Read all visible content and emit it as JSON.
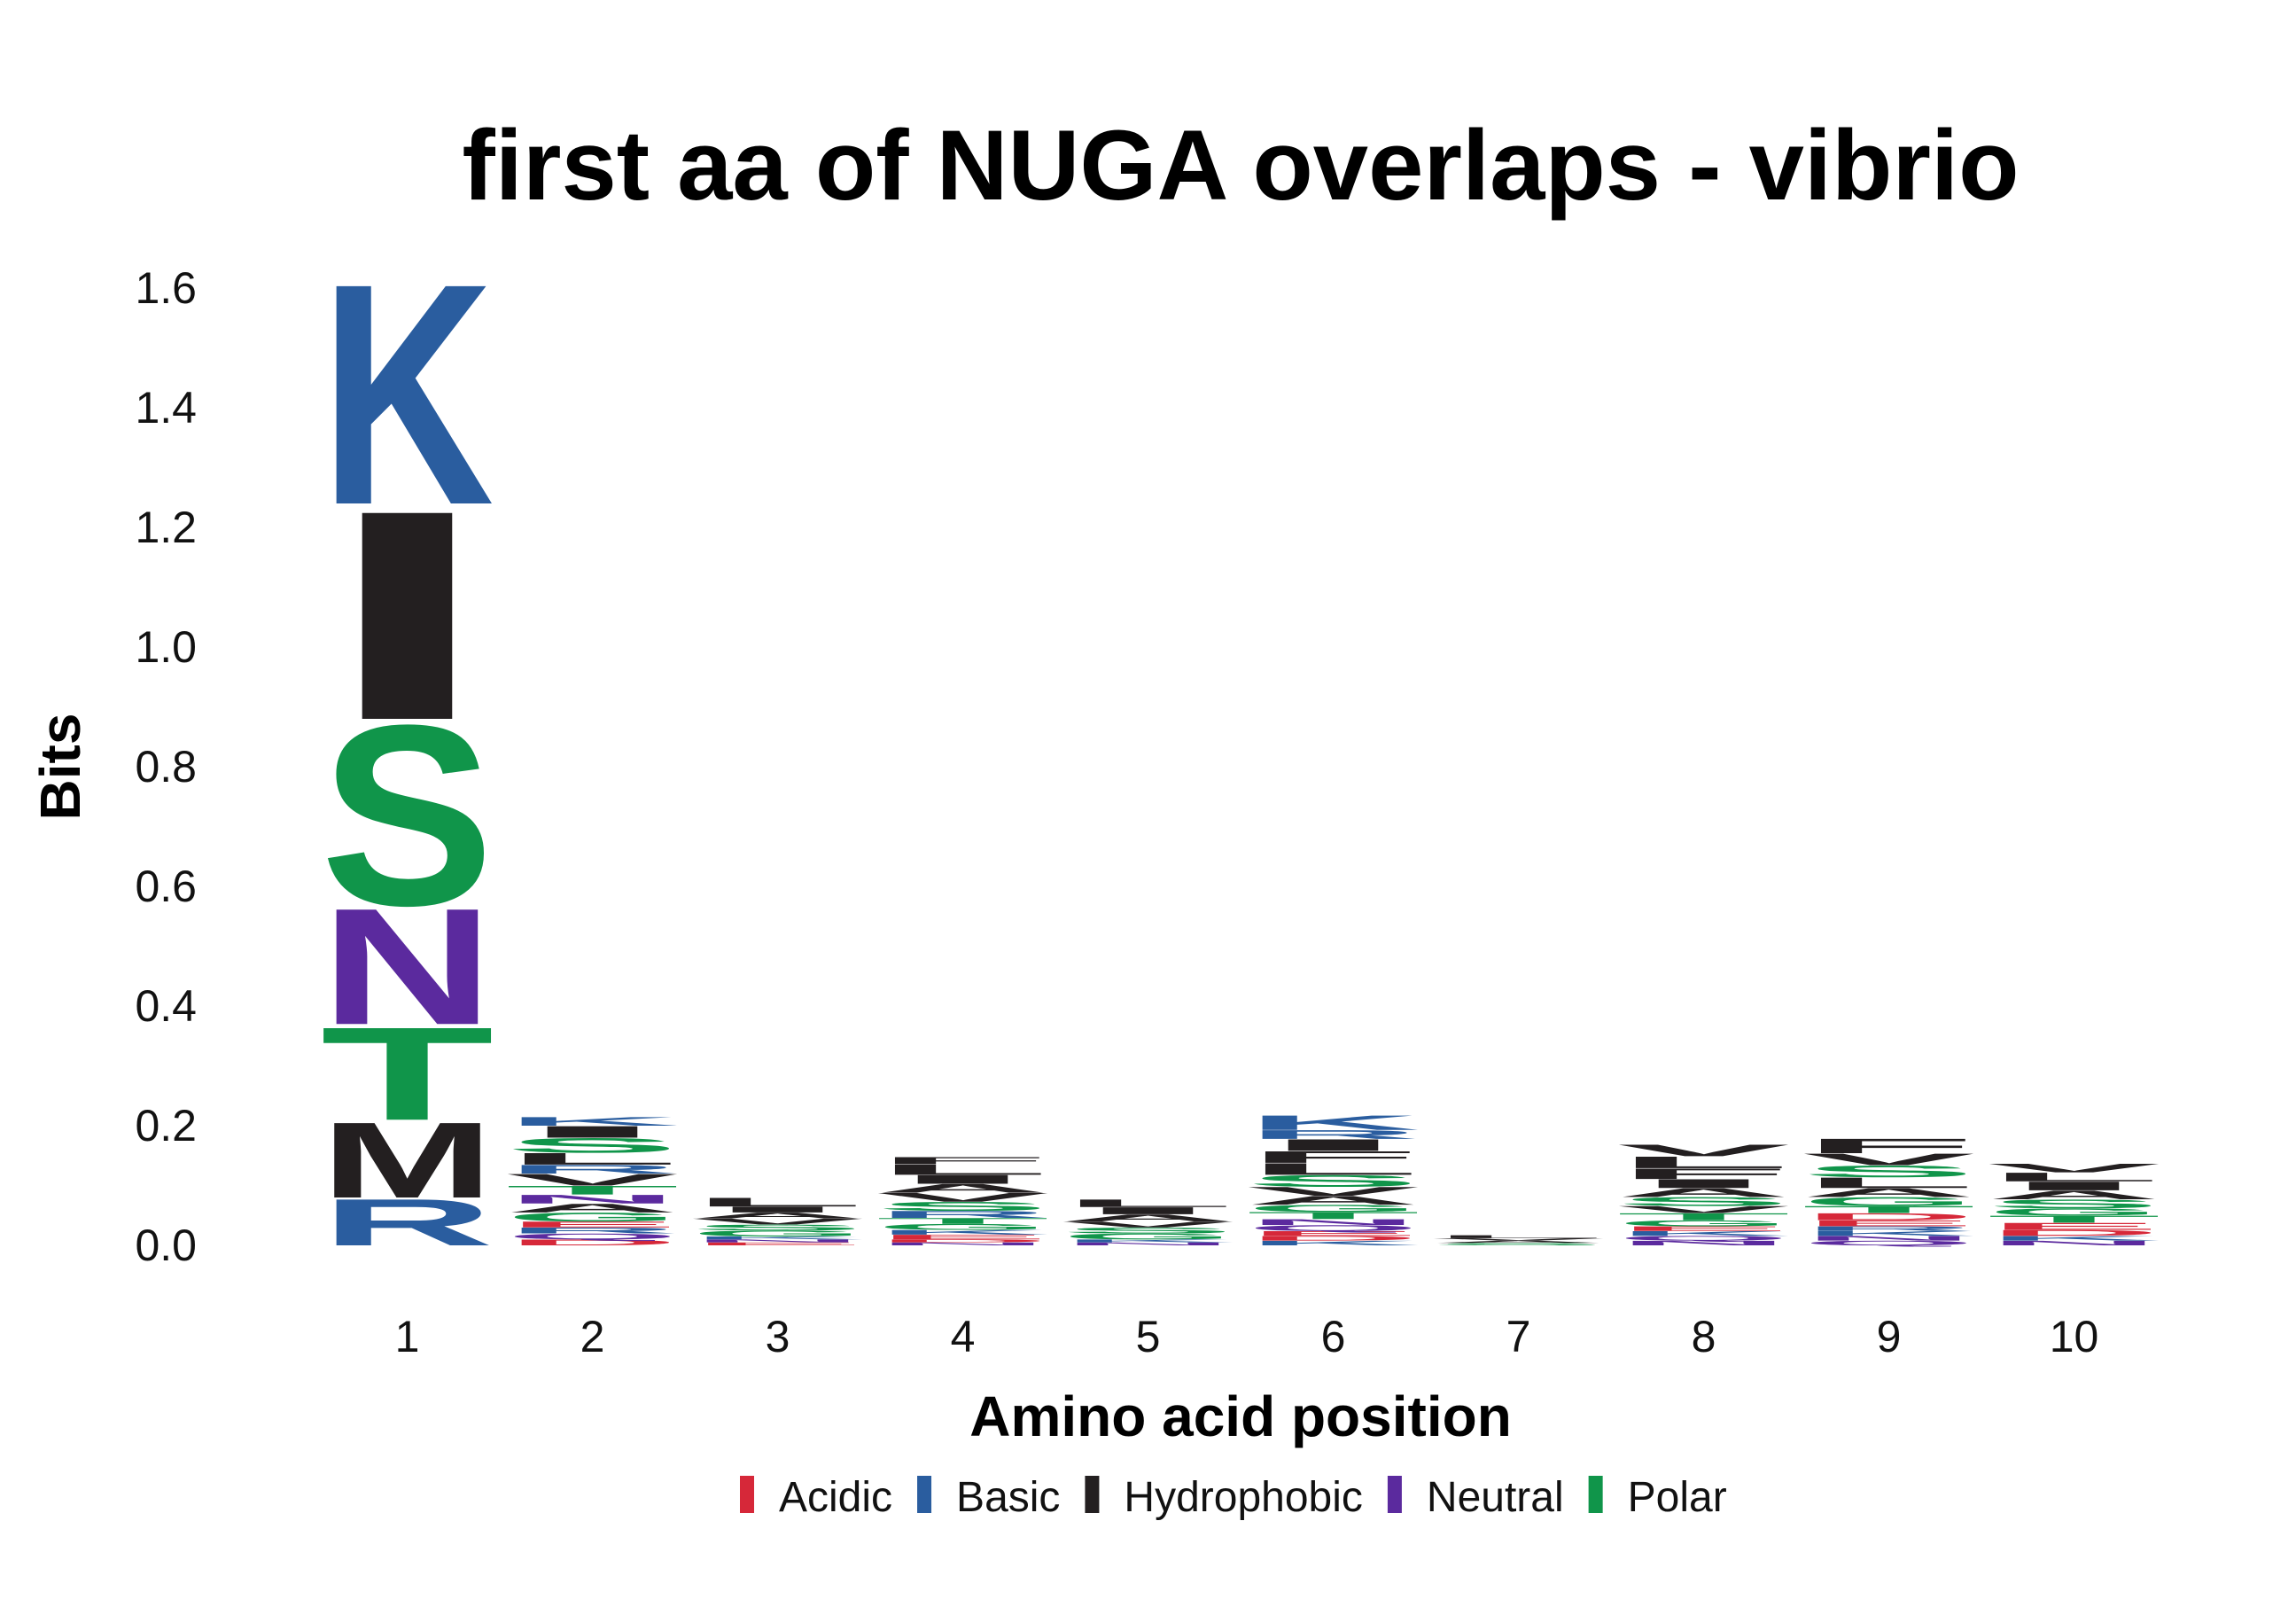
{
  "chart_data": {
    "type": "sequence-logo",
    "title": "first aa of NUGA overlaps - vibrio",
    "xlabel": "Amino acid position",
    "ylabel": "Bits",
    "ylim": [
      0,
      1.6
    ],
    "yticks": [
      "0.0",
      "0.2",
      "0.4",
      "0.6",
      "0.8",
      "1.0",
      "1.2",
      "1.4",
      "1.6"
    ],
    "xticks": [
      "1",
      "2",
      "3",
      "4",
      "5",
      "6",
      "7",
      "8",
      "9",
      "10"
    ],
    "grid": false,
    "legend_position": "bottom",
    "legend": [
      {
        "name": "Acidic",
        "color": "#d62839"
      },
      {
        "name": "Basic",
        "color": "#2a5d9f"
      },
      {
        "name": "Hydrophobic",
        "color": "#231f20"
      },
      {
        "name": "Neutral",
        "color": "#5b2a9e"
      },
      {
        "name": "Polar",
        "color": "#10954a"
      }
    ],
    "positions": [
      {
        "position": "1",
        "letters": [
          {
            "aa": "R",
            "group": "Basic",
            "bits": 0.08
          },
          {
            "aa": "M",
            "group": "Hydrophobic",
            "bits": 0.13
          },
          {
            "aa": "T",
            "group": "Polar",
            "bits": 0.16
          },
          {
            "aa": "N",
            "group": "Neutral",
            "bits": 0.2
          },
          {
            "aa": "S",
            "group": "Polar",
            "bits": 0.31
          },
          {
            "aa": "I",
            "group": "Hydrophobic",
            "bits": 0.36
          },
          {
            "aa": "K",
            "group": "Basic",
            "bits": 0.38
          }
        ]
      },
      {
        "position": "2",
        "letters": [
          {
            "aa": "D",
            "group": "Acidic",
            "bits": 0.01
          },
          {
            "aa": "Q",
            "group": "Neutral",
            "bits": 0.01
          },
          {
            "aa": "R",
            "group": "Basic",
            "bits": 0.01
          },
          {
            "aa": "E",
            "group": "Acidic",
            "bits": 0.01
          },
          {
            "aa": "G",
            "group": "Polar",
            "bits": 0.015
          },
          {
            "aa": "A",
            "group": "Hydrophobic",
            "bits": 0.015
          },
          {
            "aa": "N",
            "group": "Neutral",
            "bits": 0.015
          },
          {
            "aa": "T",
            "group": "Polar",
            "bits": 0.015
          },
          {
            "aa": "V",
            "group": "Hydrophobic",
            "bits": 0.02
          },
          {
            "aa": "R",
            "group": "Basic",
            "bits": 0.015
          },
          {
            "aa": "L",
            "group": "Hydrophobic",
            "bits": 0.02
          },
          {
            "aa": "S",
            "group": "Polar",
            "bits": 0.025
          },
          {
            "aa": "I",
            "group": "Hydrophobic",
            "bits": 0.02
          },
          {
            "aa": "K",
            "group": "Basic",
            "bits": 0.015
          }
        ]
      },
      {
        "position": "3",
        "letters": [
          {
            "aa": "E",
            "group": "Acidic",
            "bits": 0.005
          },
          {
            "aa": "N",
            "group": "Neutral",
            "bits": 0.005
          },
          {
            "aa": "K",
            "group": "Basic",
            "bits": 0.005
          },
          {
            "aa": "G",
            "group": "Polar",
            "bits": 0.01
          },
          {
            "aa": "S",
            "group": "Polar",
            "bits": 0.01
          },
          {
            "aa": "V",
            "group": "Hydrophobic",
            "bits": 0.01
          },
          {
            "aa": "A",
            "group": "Hydrophobic",
            "bits": 0.01
          },
          {
            "aa": "I",
            "group": "Hydrophobic",
            "bits": 0.01
          },
          {
            "aa": "L",
            "group": "Hydrophobic",
            "bits": 0.015
          }
        ]
      },
      {
        "position": "4",
        "letters": [
          {
            "aa": "N",
            "group": "Neutral",
            "bits": 0.005
          },
          {
            "aa": "D",
            "group": "Acidic",
            "bits": 0.005
          },
          {
            "aa": "E",
            "group": "Acidic",
            "bits": 0.008
          },
          {
            "aa": "K",
            "group": "Basic",
            "bits": 0.008
          },
          {
            "aa": "G",
            "group": "Polar",
            "bits": 0.01
          },
          {
            "aa": "T",
            "group": "Polar",
            "bits": 0.01
          },
          {
            "aa": "R",
            "group": "Basic",
            "bits": 0.012
          },
          {
            "aa": "S",
            "group": "Polar",
            "bits": 0.015
          },
          {
            "aa": "V",
            "group": "Hydrophobic",
            "bits": 0.015
          },
          {
            "aa": "A",
            "group": "Hydrophobic",
            "bits": 0.015
          },
          {
            "aa": "I",
            "group": "Hydrophobic",
            "bits": 0.015
          },
          {
            "aa": "L",
            "group": "Hydrophobic",
            "bits": 0.018
          },
          {
            "aa": "F",
            "group": "Hydrophobic",
            "bits": 0.012
          }
        ]
      },
      {
        "position": "5",
        "letters": [
          {
            "aa": "N",
            "group": "Neutral",
            "bits": 0.005
          },
          {
            "aa": "K",
            "group": "Basic",
            "bits": 0.005
          },
          {
            "aa": "G",
            "group": "Polar",
            "bits": 0.01
          },
          {
            "aa": "S",
            "group": "Polar",
            "bits": 0.01
          },
          {
            "aa": "V",
            "group": "Hydrophobic",
            "bits": 0.01
          },
          {
            "aa": "A",
            "group": "Hydrophobic",
            "bits": 0.012
          },
          {
            "aa": "I",
            "group": "Hydrophobic",
            "bits": 0.012
          },
          {
            "aa": "L",
            "group": "Hydrophobic",
            "bits": 0.013
          }
        ]
      },
      {
        "position": "6",
        "letters": [
          {
            "aa": "K",
            "group": "Basic",
            "bits": 0.008
          },
          {
            "aa": "D",
            "group": "Acidic",
            "bits": 0.008
          },
          {
            "aa": "E",
            "group": "Acidic",
            "bits": 0.008
          },
          {
            "aa": "Q",
            "group": "Neutral",
            "bits": 0.01
          },
          {
            "aa": "N",
            "group": "Neutral",
            "bits": 0.01
          },
          {
            "aa": "T",
            "group": "Polar",
            "bits": 0.012
          },
          {
            "aa": "G",
            "group": "Polar",
            "bits": 0.012
          },
          {
            "aa": "A",
            "group": "Hydrophobic",
            "bits": 0.015
          },
          {
            "aa": "V",
            "group": "Hydrophobic",
            "bits": 0.015
          },
          {
            "aa": "S",
            "group": "Polar",
            "bits": 0.02
          },
          {
            "aa": "L",
            "group": "Hydrophobic",
            "bits": 0.02
          },
          {
            "aa": "F",
            "group": "Hydrophobic",
            "bits": 0.02
          },
          {
            "aa": "I",
            "group": "Hydrophobic",
            "bits": 0.02
          },
          {
            "aa": "R",
            "group": "Basic",
            "bits": 0.015
          },
          {
            "aa": "K",
            "group": "Basic",
            "bits": 0.025
          }
        ]
      },
      {
        "position": "7",
        "letters": [
          {
            "aa": "S",
            "group": "Polar",
            "bits": 0.004
          },
          {
            "aa": "A",
            "group": "Hydrophobic",
            "bits": 0.004
          },
          {
            "aa": "V",
            "group": "Hydrophobic",
            "bits": 0.004
          },
          {
            "aa": "L",
            "group": "Hydrophobic",
            "bits": 0.005
          }
        ]
      },
      {
        "position": "8",
        "letters": [
          {
            "aa": "N",
            "group": "Neutral",
            "bits": 0.008
          },
          {
            "aa": "Q",
            "group": "Neutral",
            "bits": 0.008
          },
          {
            "aa": "K",
            "group": "Basic",
            "bits": 0.008
          },
          {
            "aa": "E",
            "group": "Acidic",
            "bits": 0.008
          },
          {
            "aa": "G",
            "group": "Polar",
            "bits": 0.01
          },
          {
            "aa": "T",
            "group": "Polar",
            "bits": 0.012
          },
          {
            "aa": "V",
            "group": "Hydrophobic",
            "bits": 0.012
          },
          {
            "aa": "S",
            "group": "Polar",
            "bits": 0.015
          },
          {
            "aa": "A",
            "group": "Hydrophobic",
            "bits": 0.015
          },
          {
            "aa": "I",
            "group": "Hydrophobic",
            "bits": 0.015
          },
          {
            "aa": "F",
            "group": "Hydrophobic",
            "bits": 0.018
          },
          {
            "aa": "L",
            "group": "Hydrophobic",
            "bits": 0.02
          },
          {
            "aa": "V",
            "group": "Hydrophobic",
            "bits": 0.02
          }
        ]
      },
      {
        "position": "9",
        "letters": [
          {
            "aa": "Q",
            "group": "Neutral",
            "bits": 0.008
          },
          {
            "aa": "N",
            "group": "Neutral",
            "bits": 0.008
          },
          {
            "aa": "K",
            "group": "Basic",
            "bits": 0.008
          },
          {
            "aa": "R",
            "group": "Basic",
            "bits": 0.008
          },
          {
            "aa": "E",
            "group": "Acidic",
            "bits": 0.01
          },
          {
            "aa": "D",
            "group": "Acidic",
            "bits": 0.012
          },
          {
            "aa": "T",
            "group": "Polar",
            "bits": 0.012
          },
          {
            "aa": "G",
            "group": "Polar",
            "bits": 0.015
          },
          {
            "aa": "A",
            "group": "Hydrophobic",
            "bits": 0.015
          },
          {
            "aa": "L",
            "group": "Hydrophobic",
            "bits": 0.018
          },
          {
            "aa": "S",
            "group": "Polar",
            "bits": 0.02
          },
          {
            "aa": "V",
            "group": "Hydrophobic",
            "bits": 0.02
          },
          {
            "aa": "F",
            "group": "Hydrophobic",
            "bits": 0.025
          }
        ]
      },
      {
        "position": "10",
        "letters": [
          {
            "aa": "N",
            "group": "Neutral",
            "bits": 0.008
          },
          {
            "aa": "K",
            "group": "Basic",
            "bits": 0.008
          },
          {
            "aa": "D",
            "group": "Acidic",
            "bits": 0.01
          },
          {
            "aa": "E",
            "group": "Acidic",
            "bits": 0.012
          },
          {
            "aa": "T",
            "group": "Polar",
            "bits": 0.012
          },
          {
            "aa": "G",
            "group": "Polar",
            "bits": 0.012
          },
          {
            "aa": "S",
            "group": "Polar",
            "bits": 0.015
          },
          {
            "aa": "A",
            "group": "Hydrophobic",
            "bits": 0.015
          },
          {
            "aa": "I",
            "group": "Hydrophobic",
            "bits": 0.015
          },
          {
            "aa": "L",
            "group": "Hydrophobic",
            "bits": 0.015
          },
          {
            "aa": "V",
            "group": "Hydrophobic",
            "bits": 0.015
          }
        ]
      }
    ]
  }
}
